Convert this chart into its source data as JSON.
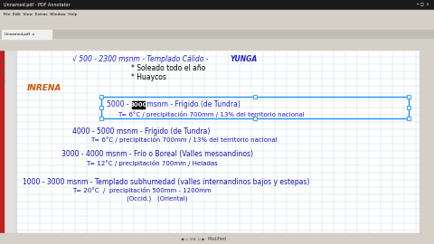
{
  "bg_color": "#c8c8c8",
  "content_bg": "#ffffff",
  "title_bar_color": "#1a1a1a",
  "toolbar_color": "#d4d0c8",
  "grid_color": "#c5d8e8",
  "blue_text_color": "#2222cc",
  "dark_blue_text_color": "#1111aa",
  "orange_text_color": "#cc5500",
  "black_text_color": "#000000",
  "selection_border_color": "#1e90ff",
  "line1_prefix": "√ 500 - 2300 msnm - Templado Cálido - ",
  "line1_yunga": "YUNGA",
  "line2": "* Soleado todo el año",
  "line3": "* Huaycos",
  "label_inrena": "INRENA",
  "box_line1_prefix": "5000 - ",
  "box_line1_highlight": "3000",
  "box_line1_suffix": " msnm - Frígido (de Tundra)",
  "box_line2": "T= 6°C / precipitación 700mm / 13% del territorio nacional",
  "line_4000": "4000 - 5000 msnm - Frígido (de Tundra)",
  "line_4000_sub": "T= 6°C / precipitación 700mm / 13% del territorio nacional",
  "line_3000": "3000 - 4000 msnm - Frío o Boreal (Valles mesoandinos)",
  "line_3000_sub": "T= 12°C / precipitación 700mm / Heladas",
  "line_1000": "1000 - 3000 msnm - Templado subhumedad (valles internandinos bajos y estepas)",
  "line_1000_sub1": "T= 20°C  /  precipitación 500mm - 1200mm",
  "line_1000_sub2": "(Occid.)   (Oriental)"
}
